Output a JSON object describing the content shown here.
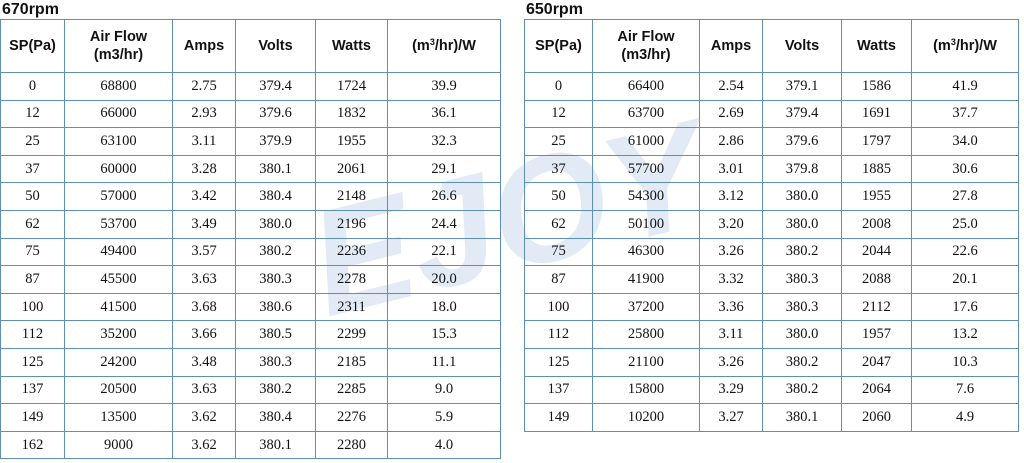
{
  "left": {
    "title": "670rpm",
    "headers": [
      "SP(Pa)",
      "Air Flow (m3/hr)",
      "Amps",
      "Volts",
      "Watts",
      "(m³/hr)/W"
    ],
    "rows": [
      [
        "0",
        "68800",
        "2.75",
        "379.4",
        "1724",
        "39.9"
      ],
      [
        "12",
        "66000",
        "2.93",
        "379.6",
        "1832",
        "36.1"
      ],
      [
        "25",
        "63100",
        "3.11",
        "379.9",
        "1955",
        "32.3"
      ],
      [
        "37",
        "60000",
        "3.28",
        "380.1",
        "2061",
        "29.1"
      ],
      [
        "50",
        "57000",
        "3.42",
        "380.4",
        "2148",
        "26.6"
      ],
      [
        "62",
        "53700",
        "3.49",
        "380.0",
        "2196",
        "24.4"
      ],
      [
        "75",
        "49400",
        "3.57",
        "380.2",
        "2236",
        "22.1"
      ],
      [
        "87",
        "45500",
        "3.63",
        "380.3",
        "2278",
        "20.0"
      ],
      [
        "100",
        "41500",
        "3.68",
        "380.6",
        "2311",
        "18.0"
      ],
      [
        "112",
        "35200",
        "3.66",
        "380.5",
        "2299",
        "15.3"
      ],
      [
        "125",
        "24200",
        "3.48",
        "380.3",
        "2185",
        "11.1"
      ],
      [
        "137",
        "20500",
        "3.63",
        "380.2",
        "2285",
        "9.0"
      ],
      [
        "149",
        "13500",
        "3.62",
        "380.4",
        "2276",
        "5.9"
      ],
      [
        "162",
        "9000",
        "3.62",
        "380.1",
        "2280",
        "4.0"
      ]
    ]
  },
  "right": {
    "title": "650rpm",
    "headers": [
      "SP(Pa)",
      "Air Flow (m3/hr)",
      "Amps",
      "Volts",
      "Watts",
      "(m³/hr)/W"
    ],
    "rows": [
      [
        "0",
        "66400",
        "2.54",
        "379.1",
        "1586",
        "41.9"
      ],
      [
        "12",
        "63700",
        "2.69",
        "379.4",
        "1691",
        "37.7"
      ],
      [
        "25",
        "61000",
        "2.86",
        "379.6",
        "1797",
        "34.0"
      ],
      [
        "37",
        "57700",
        "3.01",
        "379.8",
        "1885",
        "30.6"
      ],
      [
        "50",
        "54300",
        "3.12",
        "380.0",
        "1955",
        "27.8"
      ],
      [
        "62",
        "50100",
        "3.20",
        "380.0",
        "2008",
        "25.0"
      ],
      [
        "75",
        "46300",
        "3.26",
        "380.2",
        "2044",
        "22.6"
      ],
      [
        "87",
        "41900",
        "3.32",
        "380.3",
        "2088",
        "20.1"
      ],
      [
        "100",
        "37200",
        "3.36",
        "380.3",
        "2112",
        "17.6"
      ],
      [
        "112",
        "25800",
        "3.11",
        "380.0",
        "1957",
        "13.2"
      ],
      [
        "125",
        "21100",
        "3.26",
        "380.2",
        "2047",
        "10.3"
      ],
      [
        "137",
        "15800",
        "3.29",
        "380.2",
        "2064",
        "7.6"
      ],
      [
        "149",
        "10200",
        "3.27",
        "380.1",
        "2060",
        "4.9"
      ]
    ]
  },
  "watermark": {
    "text": "EJOY",
    "color": "#7aa3d4"
  }
}
